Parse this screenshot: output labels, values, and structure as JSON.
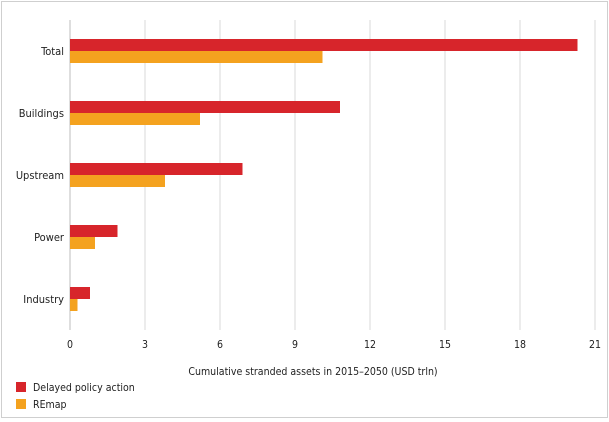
{
  "chart_data": {
    "type": "bar",
    "orientation": "horizontal",
    "categories": [
      "Total",
      "Buildings",
      "Upstream",
      "Power",
      "Industry"
    ],
    "series": [
      {
        "name": "Delayed policy action",
        "color": "#d7252b",
        "values": [
          20.3,
          10.8,
          6.9,
          1.9,
          0.8
        ]
      },
      {
        "name": "REmap",
        "color": "#f4a21f",
        "values": [
          10.1,
          5.2,
          3.8,
          1.0,
          0.3
        ]
      }
    ],
    "xlabel": "Cumulative stranded assets in 2015–2050 (USD trln)",
    "ylabel": "",
    "xlim": [
      0,
      21
    ],
    "xticks": [
      0,
      3,
      6,
      9,
      12,
      15,
      18,
      21
    ],
    "grid": "vertical",
    "legend_position": "bottom-left"
  }
}
